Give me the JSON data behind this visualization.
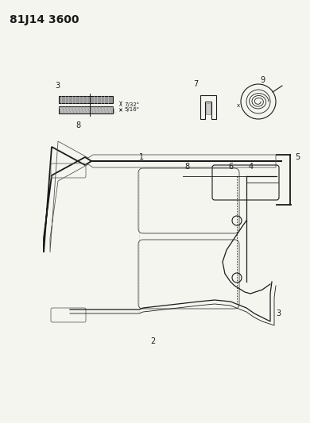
{
  "title": "81J14 3600",
  "bg_color": "#f5f5f0",
  "line_color": "#1a1a1a",
  "title_fontsize": 10,
  "label_fontsize": 7,
  "small_fontsize": 5.5,
  "dim1_label": "7/32\"",
  "dim2_label": "5/16\""
}
